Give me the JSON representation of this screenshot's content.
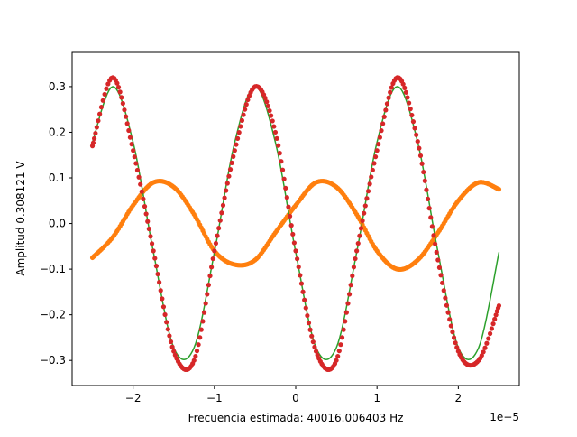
{
  "chart_data": {
    "type": "scatter",
    "title": "",
    "xlabel": "Frecuencia estimada: 40016.006403 Hz",
    "ylabel": "Amplitud 0.308121 V",
    "x_offset_label": "1e−5",
    "x_unit_scale": 1e-05,
    "xlim": [
      -2.75,
      2.75
    ],
    "ylim": [
      -0.355,
      0.375
    ],
    "x_ticks": [
      -2,
      -1,
      0,
      1,
      2
    ],
    "x_tick_labels": [
      "−2",
      "−1",
      "0",
      "1",
      "2"
    ],
    "y_ticks": [
      -0.3,
      -0.2,
      -0.1,
      0.0,
      0.1,
      0.2,
      0.3
    ],
    "y_tick_labels": [
      "−0.3",
      "−0.2",
      "−0.1",
      "0.0",
      "0.1",
      "0.2",
      "0.3"
    ],
    "grid": false,
    "legend": "none",
    "series": [
      {
        "kind": "line",
        "color": "#2ca02c",
        "x": [
          -2.5,
          -2.25,
          -2.0,
          -1.75,
          -1.5,
          -1.25,
          -1.0,
          -0.75,
          -0.5,
          -0.25,
          0.0,
          0.25,
          0.5,
          0.75,
          1.0,
          1.25,
          1.5,
          1.75,
          2.0,
          2.25,
          2.5
        ],
        "y": [
          0.178,
          0.3,
          0.178,
          -0.063,
          -0.272,
          -0.272,
          -0.063,
          0.178,
          0.3,
          0.178,
          -0.063,
          -0.272,
          -0.272,
          -0.063,
          0.178,
          0.3,
          0.178,
          -0.063,
          -0.272,
          -0.272,
          -0.063
        ]
      },
      {
        "kind": "markers",
        "color": "#d62728",
        "x": [
          -2.5,
          -2.25,
          -2.0,
          -1.75,
          -1.5,
          -1.25,
          -1.0,
          -0.75,
          -0.5,
          -0.25,
          0.0,
          0.25,
          0.5,
          0.75,
          1.0,
          1.25,
          1.5,
          1.75,
          2.0,
          2.25,
          2.5
        ],
        "y": [
          0.17,
          0.32,
          0.16,
          -0.06,
          -0.28,
          -0.3,
          -0.06,
          0.16,
          0.3,
          0.2,
          -0.06,
          -0.28,
          -0.3,
          -0.06,
          0.16,
          0.32,
          0.18,
          -0.08,
          -0.28,
          -0.3,
          -0.18
        ]
      },
      {
        "kind": "markers",
        "color": "#ff7f0e",
        "x": [
          -2.5,
          -2.25,
          -2.0,
          -1.75,
          -1.5,
          -1.25,
          -1.0,
          -0.75,
          -0.5,
          -0.25,
          0.0,
          0.25,
          0.5,
          0.75,
          1.0,
          1.25,
          1.5,
          1.75,
          2.0,
          2.25,
          2.5
        ],
        "y": [
          -0.075,
          -0.03,
          0.04,
          0.09,
          0.08,
          0.02,
          -0.06,
          -0.09,
          -0.08,
          -0.02,
          0.04,
          0.09,
          0.08,
          0.02,
          -0.06,
          -0.1,
          -0.08,
          -0.02,
          0.05,
          0.09,
          0.075
        ]
      }
    ]
  }
}
